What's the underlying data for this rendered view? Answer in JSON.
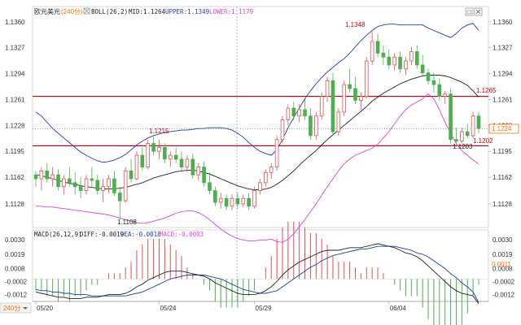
{
  "header": {
    "symbol": "欧元美元",
    "timeframe": "(240分)",
    "indicator": "BOLL(26,2)",
    "mid": "MID:1.1264",
    "upper": "UPPER:1.1349",
    "lower": "LOWER:1.1179"
  },
  "macd_header": {
    "name": "MACD(26,12,9)",
    "diff": "DIFF:-0.0019",
    "dea": "DEA:-0.0018",
    "macd": "MACD:-0.0003"
  },
  "period_badge": "240分",
  "colors": {
    "up": "#d9534f",
    "down": "#4cae4c",
    "mid": "#222222",
    "upper": "#1f3fa6",
    "lower": "#e23fd6",
    "hline": "#cc0000",
    "diff": "#222222",
    "dea": "#1f3fa6",
    "price_tag": "#ff6f00"
  },
  "price_axis": {
    "labels": [
      "1.1360",
      "1.1327",
      "1.1294",
      "1.1261",
      "1.1228",
      "1.1195",
      "1.1162",
      "1.1128"
    ]
  },
  "macd_axis": {
    "labels": [
      "0.0030",
      "0.0019",
      "0.0008",
      "-0.0002",
      "-0.0012"
    ]
  },
  "annotations": {
    "hline_top": "1.1265",
    "hline_bottom": "1.1202",
    "current_price": "1.1224",
    "current_macd": "0.0011",
    "low_label": "1.1108",
    "high_label": "1.1348",
    "swing_label": "1.1215",
    "recent_low": "1.1203"
  },
  "chart_data": [
    {
      "type": "candlestick",
      "x_ticks": [
        "05/20",
        "05/24",
        "05/29",
        "06/04"
      ],
      "ylim": [
        1.11,
        1.1365
      ],
      "hlines": [
        1.1265,
        1.1202
      ],
      "candles": [
        [
          1.1165,
          1.117,
          1.115,
          1.116
        ],
        [
          1.116,
          1.1175,
          1.1145,
          1.117
        ],
        [
          1.117,
          1.118,
          1.1155,
          1.116
        ],
        [
          1.116,
          1.1175,
          1.115,
          1.1165
        ],
        [
          1.1165,
          1.1172,
          1.1145,
          1.115
        ],
        [
          1.115,
          1.1165,
          1.114,
          1.116
        ],
        [
          1.116,
          1.1175,
          1.115,
          1.1155
        ],
        [
          1.1155,
          1.1168,
          1.114,
          1.115
        ],
        [
          1.115,
          1.1162,
          1.1135,
          1.1145
        ],
        [
          1.1145,
          1.1165,
          1.114,
          1.116
        ],
        [
          1.116,
          1.1175,
          1.115,
          1.1158
        ],
        [
          1.1158,
          1.1165,
          1.114,
          1.1145
        ],
        [
          1.1145,
          1.116,
          1.113,
          1.115
        ],
        [
          1.115,
          1.1165,
          1.1142,
          1.116
        ],
        [
          1.116,
          1.117,
          1.1138,
          1.1142
        ],
        [
          1.1142,
          1.115,
          1.1108,
          1.1132
        ],
        [
          1.1132,
          1.1175,
          1.113,
          1.117
        ],
        [
          1.117,
          1.1185,
          1.1155,
          1.116
        ],
        [
          1.116,
          1.1195,
          1.1158,
          1.119
        ],
        [
          1.119,
          1.12,
          1.117,
          1.1175
        ],
        [
          1.1175,
          1.121,
          1.1172,
          1.1205
        ],
        [
          1.1205,
          1.1215,
          1.119,
          1.1195
        ],
        [
          1.1195,
          1.121,
          1.1185,
          1.12
        ],
        [
          1.12,
          1.1205,
          1.118,
          1.1185
        ],
        [
          1.1185,
          1.1195,
          1.1175,
          1.119
        ],
        [
          1.119,
          1.12,
          1.118,
          1.1185
        ],
        [
          1.1185,
          1.1195,
          1.117,
          1.1175
        ],
        [
          1.1175,
          1.119,
          1.1168,
          1.1185
        ],
        [
          1.1185,
          1.1192,
          1.116,
          1.1165
        ],
        [
          1.1165,
          1.118,
          1.1158,
          1.1175
        ],
        [
          1.1175,
          1.1182,
          1.115,
          1.1155
        ],
        [
          1.1155,
          1.1168,
          1.114,
          1.1145
        ],
        [
          1.1145,
          1.115,
          1.1125,
          1.113
        ],
        [
          1.113,
          1.1142,
          1.1122,
          1.1135
        ],
        [
          1.1135,
          1.114,
          1.112,
          1.1125
        ],
        [
          1.1125,
          1.114,
          1.112,
          1.1135
        ],
        [
          1.1135,
          1.1142,
          1.1122,
          1.1128
        ],
        [
          1.1128,
          1.114,
          1.1124,
          1.1135
        ],
        [
          1.1135,
          1.1142,
          1.112,
          1.1125
        ],
        [
          1.1125,
          1.115,
          1.1122,
          1.1145
        ],
        [
          1.1145,
          1.116,
          1.114,
          1.1155
        ],
        [
          1.1155,
          1.1172,
          1.115,
          1.1168
        ],
        [
          1.1168,
          1.118,
          1.116,
          1.1175
        ],
        [
          1.1175,
          1.1215,
          1.117,
          1.121
        ],
        [
          1.121,
          1.124,
          1.1205,
          1.1235
        ],
        [
          1.1235,
          1.1255,
          1.1228,
          1.125
        ],
        [
          1.125,
          1.1258,
          1.1235,
          1.124
        ],
        [
          1.124,
          1.1255,
          1.1232,
          1.1248
        ],
        [
          1.1248,
          1.1262,
          1.1235,
          1.124
        ],
        [
          1.124,
          1.125,
          1.121,
          1.1215
        ],
        [
          1.1215,
          1.1245,
          1.121,
          1.124
        ],
        [
          1.124,
          1.127,
          1.1235,
          1.1265
        ],
        [
          1.1265,
          1.129,
          1.1258,
          1.1285
        ],
        [
          1.1285,
          1.1295,
          1.1215,
          1.122
        ],
        [
          1.122,
          1.125,
          1.1215,
          1.1245
        ],
        [
          1.1245,
          1.1285,
          1.124,
          1.128
        ],
        [
          1.128,
          1.13,
          1.127,
          1.1275
        ],
        [
          1.1275,
          1.129,
          1.1255,
          1.126
        ],
        [
          1.126,
          1.127,
          1.1248,
          1.1265
        ],
        [
          1.1265,
          1.1315,
          1.1262,
          1.131
        ],
        [
          1.131,
          1.1348,
          1.1305,
          1.1335
        ],
        [
          1.1335,
          1.1345,
          1.1315,
          1.132
        ],
        [
          1.132,
          1.133,
          1.1305,
          1.1315
        ],
        [
          1.1315,
          1.1325,
          1.13,
          1.1305
        ],
        [
          1.1305,
          1.132,
          1.1298,
          1.1315
        ],
        [
          1.1315,
          1.1322,
          1.1295,
          1.13
        ],
        [
          1.13,
          1.1315,
          1.1292,
          1.131
        ],
        [
          1.131,
          1.1328,
          1.1305,
          1.1322
        ],
        [
          1.1322,
          1.133,
          1.13,
          1.1305
        ],
        [
          1.1305,
          1.1318,
          1.129,
          1.1295
        ],
        [
          1.1295,
          1.13,
          1.128,
          1.1285
        ],
        [
          1.1285,
          1.1295,
          1.127,
          1.128
        ],
        [
          1.128,
          1.1288,
          1.126,
          1.1265
        ],
        [
          1.1265,
          1.1272,
          1.1255,
          1.1268
        ],
        [
          1.1268,
          1.1275,
          1.1205,
          1.121
        ],
        [
          1.121,
          1.1225,
          1.1203,
          1.1208
        ],
        [
          1.1208,
          1.1225,
          1.1205,
          1.122
        ],
        [
          1.122,
          1.123,
          1.1212,
          1.1215
        ],
        [
          1.1215,
          1.1245,
          1.1212,
          1.124
        ],
        [
          1.124,
          1.1245,
          1.1218,
          1.1224
        ]
      ],
      "boll": {
        "mid": [
          1.1165,
          1.1164,
          1.1162,
          1.116,
          1.1158,
          1.1156,
          1.1154,
          1.1153,
          1.1151,
          1.115,
          1.1149,
          1.1148,
          1.1147,
          1.1147,
          1.1147,
          1.1148,
          1.1149,
          1.1151,
          1.1153,
          1.1155,
          1.1158,
          1.1161,
          1.1163,
          1.1165,
          1.1167,
          1.1169,
          1.117,
          1.1171,
          1.1171,
          1.117,
          1.1168,
          1.1166,
          1.1163,
          1.116,
          1.1157,
          1.1154,
          1.1151,
          1.1149,
          1.1147,
          1.1146,
          1.1146,
          1.1147,
          1.1149,
          1.1153,
          1.1158,
          1.1164,
          1.117,
          1.1177,
          1.1184,
          1.119,
          1.1196,
          1.1203,
          1.121,
          1.1216,
          1.1222,
          1.1228,
          1.1234,
          1.124,
          1.1246,
          1.1252,
          1.1259,
          1.1264,
          1.1269,
          1.1273,
          1.1277,
          1.1281,
          1.1284,
          1.1287,
          1.1289,
          1.1291,
          1.1292,
          1.1292,
          1.1292,
          1.1291,
          1.1289,
          1.1286,
          1.1283,
          1.1279,
          1.1272,
          1.1264
        ],
        "upper": [
          1.1245,
          1.124,
          1.1232,
          1.1224,
          1.1218,
          1.1212,
          1.1206,
          1.12,
          1.1194,
          1.119,
          1.1186,
          1.1183,
          1.1181,
          1.1182,
          1.1184,
          1.1187,
          1.1191,
          1.1197,
          1.1203,
          1.1208,
          1.1212,
          1.1215,
          1.1217,
          1.1219,
          1.122,
          1.1221,
          1.1222,
          1.1222,
          1.1223,
          1.1224,
          1.1224,
          1.1225,
          1.1225,
          1.1225,
          1.1224,
          1.1222,
          1.1218,
          1.1213,
          1.1206,
          1.12,
          1.1195,
          1.1192,
          1.119,
          1.1197,
          1.121,
          1.1225,
          1.1238,
          1.125,
          1.1262,
          1.1272,
          1.1281,
          1.1289,
          1.1296,
          1.1302,
          1.1308,
          1.1313,
          1.132,
          1.1328,
          1.1336,
          1.1343,
          1.1349,
          1.1354,
          1.1356,
          1.1357,
          1.1357,
          1.1356,
          1.1356,
          1.1356,
          1.1356,
          1.1356,
          1.1352,
          1.1349,
          1.1346,
          1.1343,
          1.134,
          1.1345,
          1.1352,
          1.1356,
          1.1358,
          1.1349
        ],
        "lower": [
          1.1125,
          1.1125,
          1.1124,
          1.1124,
          1.1123,
          1.1122,
          1.1121,
          1.112,
          1.1119,
          1.1118,
          1.1117,
          1.1116,
          1.1115,
          1.1114,
          1.1112,
          1.111,
          1.1108,
          1.1106,
          1.1104,
          1.1103,
          1.1104,
          1.1106,
          1.1108,
          1.111,
          1.1113,
          1.1116,
          1.1118,
          1.1119,
          1.1119,
          1.1117,
          1.1113,
          1.1108,
          1.1102,
          1.1096,
          1.1091,
          1.1087,
          1.1084,
          1.1082,
          1.1081,
          1.1081,
          1.1082,
          1.1082,
          1.1083,
          1.108,
          1.1079,
          1.1083,
          1.109,
          1.1099,
          1.1108,
          1.1118,
          1.1128,
          1.1139,
          1.115,
          1.116,
          1.117,
          1.1179,
          1.1185,
          1.119,
          1.1193,
          1.1196,
          1.1199,
          1.1204,
          1.1212,
          1.122,
          1.123,
          1.124,
          1.1248,
          1.1254,
          1.1258,
          1.1262,
          1.1268,
          1.1262,
          1.1248,
          1.1232,
          1.1218,
          1.1205,
          1.1196,
          1.119,
          1.1184,
          1.1179
        ]
      }
    },
    {
      "type": "macd",
      "ylim": [
        -0.0016,
        0.0032
      ],
      "diff": [
        -0.001,
        -0.0011,
        -0.0012,
        -0.0013,
        -0.0014,
        -0.0014,
        -0.0015,
        -0.0015,
        -0.0015,
        -0.0014,
        -0.0014,
        -0.0014,
        -0.0013,
        -0.0012,
        -0.0012,
        -0.0012,
        -0.0011,
        -0.0009,
        -0.0006,
        -0.0004,
        -0.0001,
        0.0001,
        0.0003,
        0.0005,
        0.0006,
        0.0006,
        0.0006,
        0.0005,
        0.0004,
        0.0003,
        0.0002,
        0.0,
        -0.0003,
        -0.0005,
        -0.0007,
        -0.0009,
        -0.0011,
        -0.0012,
        -0.0012,
        -0.0012,
        -0.0011,
        -0.0009,
        -0.0006,
        -0.0002,
        0.0003,
        0.0007,
        0.001,
        0.0013,
        0.0015,
        0.0017,
        0.0019,
        0.0021,
        0.0022,
        0.0022,
        0.0022,
        0.0023,
        0.0024,
        0.0024,
        0.0024,
        0.0025,
        0.0026,
        0.0027,
        0.0026,
        0.0025,
        0.0024,
        0.0022,
        0.002,
        0.0019,
        0.0017,
        0.0014,
        0.001,
        0.0006,
        0.0002,
        -0.0002,
        -0.0006,
        -0.0009,
        -0.0011,
        -0.0012,
        -0.0013,
        -0.0019
      ],
      "dea": [
        -0.0008,
        -0.0009,
        -0.0009,
        -0.001,
        -0.001,
        -0.0011,
        -0.0011,
        -0.0012,
        -0.0012,
        -0.0012,
        -0.0013,
        -0.0013,
        -0.0013,
        -0.0013,
        -0.0013,
        -0.0013,
        -0.0013,
        -0.0012,
        -0.0011,
        -0.001,
        -0.0008,
        -0.0006,
        -0.0004,
        -0.0002,
        0.0,
        0.0001,
        0.0002,
        0.0003,
        0.0003,
        0.0003,
        0.0003,
        0.0002,
        0.0001,
        0.0,
        -0.0002,
        -0.0004,
        -0.0006,
        -0.0008,
        -0.0009,
        -0.001,
        -0.0011,
        -0.0011,
        -0.001,
        -0.0009,
        -0.0006,
        -0.0003,
        0.0,
        0.0003,
        0.0006,
        0.0009,
        0.0011,
        0.0014,
        0.0016,
        0.0018,
        0.0019,
        0.002,
        0.0021,
        0.0022,
        0.0023,
        0.0023,
        0.0024,
        0.0025,
        0.0025,
        0.0025,
        0.0025,
        0.0024,
        0.0023,
        0.0022,
        0.002,
        0.0019,
        0.0017,
        0.0014,
        0.0011,
        0.0008,
        0.0004,
        0.0001,
        -0.0003,
        -0.0006,
        -0.001,
        -0.0018
      ]
    }
  ]
}
